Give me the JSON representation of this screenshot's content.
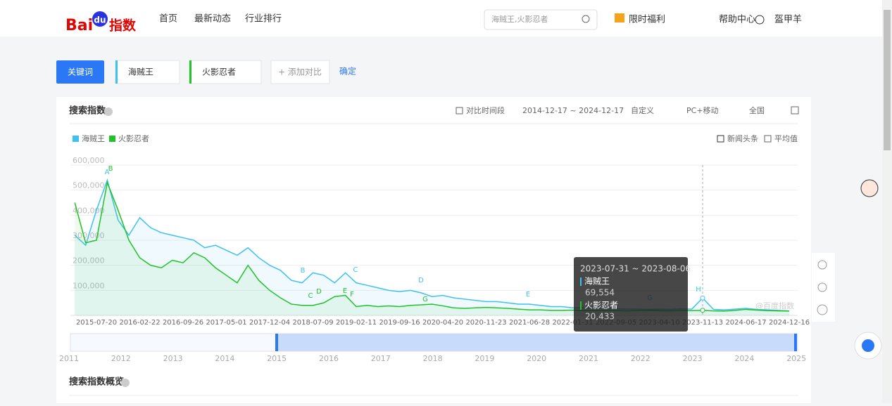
{
  "header": {
    "logo": {
      "part1": "Bai",
      "part2": "du",
      "part3": "指数"
    },
    "nav": [
      "首页",
      "最新动态",
      "行业排行"
    ],
    "search_placeholder": "海贼王,火影忍者",
    "links": [
      "限时福利",
      "帮助中心",
      "盔甲羊"
    ]
  },
  "toolbar": {
    "keyword_button": "关键词",
    "keywords": [
      "海贼王",
      "火影忍者"
    ],
    "add_compare": "+ 添加对比",
    "confirm": "确定"
  },
  "panel": {
    "title": "搜索指数",
    "compare_period": "对比时间段",
    "date_range": "2014-12-17 ~ 2024-12-17",
    "custom": "自定义",
    "device": "PC+移动",
    "region": "全国",
    "news": "新闻头条",
    "average": "平均值",
    "watermark": "@百度指数"
  },
  "chart_data": {
    "type": "line",
    "grid": true,
    "categories": [
      null,
      null,
      "2015-07-20",
      null,
      null,
      null,
      "2016-02-22",
      null,
      null,
      null,
      "2016-09-26",
      null,
      null,
      null,
      "2017-05-01",
      null,
      null,
      null,
      "2017-12-04",
      null,
      null,
      null,
      "2018-07-09",
      null,
      null,
      null,
      "2019-02-11",
      null,
      null,
      null,
      "2019-09-16",
      null,
      null,
      null,
      "2020-04-20",
      null,
      null,
      null,
      "2020-11-23",
      null,
      null,
      null,
      "2021-06-28",
      null,
      null,
      null,
      "2022-01-31",
      null,
      null,
      null,
      "2022-09-05",
      null,
      null,
      null,
      "2023-04-10",
      null,
      null,
      null,
      "2023-11-13",
      null,
      null,
      null,
      "2024-06-17",
      null,
      null,
      null,
      "2024-12-16"
    ],
    "series": [
      {
        "name": "海贼王",
        "color": "#3ec1ee",
        "values": [
          320000,
          280000,
          420000,
          540000,
          380000,
          320000,
          390000,
          350000,
          330000,
          320000,
          310000,
          300000,
          270000,
          280000,
          260000,
          240000,
          270000,
          230000,
          200000,
          180000,
          140000,
          130000,
          170000,
          160000,
          130000,
          170000,
          130000,
          120000,
          110000,
          100000,
          95000,
          100000,
          90000,
          75000,
          80000,
          70000,
          65000,
          60000,
          55000,
          55000,
          50000,
          45000,
          45000,
          40000,
          35000,
          35000,
          30000,
          30000,
          28000,
          27000,
          26000,
          25000,
          25000,
          24000,
          25000,
          24000,
          26000,
          25000,
          69554,
          24000,
          22000,
          25000,
          28000,
          24000,
          22000,
          20000,
          18000
        ]
      },
      {
        "name": "火影忍者",
        "color": "#22c22a",
        "values": [
          450000,
          290000,
          300000,
          530000,
          420000,
          300000,
          230000,
          200000,
          190000,
          220000,
          210000,
          250000,
          230000,
          190000,
          160000,
          130000,
          200000,
          140000,
          100000,
          70000,
          45000,
          40000,
          40000,
          50000,
          75000,
          80000,
          35000,
          40000,
          35000,
          38000,
          35000,
          40000,
          42000,
          45000,
          38000,
          30000,
          28000,
          30000,
          32000,
          30000,
          28000,
          25000,
          22000,
          22000,
          20000,
          20000,
          21000,
          20000,
          19000,
          20000,
          19000,
          18000,
          19000,
          20000,
          19000,
          18000,
          19000,
          19000,
          20433,
          18000,
          17000,
          20000,
          24000,
          21000,
          19000,
          18000,
          17000
        ]
      }
    ],
    "ylim": [
      0,
      600000
    ],
    "yticks": [
      {
        "value": 100000,
        "label": "100,000"
      },
      {
        "value": 200000,
        "label": "200,000"
      },
      {
        "value": 300000,
        "label": "300,000"
      },
      {
        "value": 400000,
        "label": "400,000"
      },
      {
        "value": 500000,
        "label": "500,000"
      },
      {
        "value": 600000,
        "label": "600,000"
      }
    ],
    "annotations": [
      "A",
      "B",
      "B",
      "C",
      "C",
      "D",
      "E",
      "F",
      "D",
      "G",
      "E",
      "G",
      "H"
    ],
    "tooltip": {
      "title": "2023-07-31 ~ 2023-08-06",
      "values": [
        69554,
        20433
      ],
      "value_labels": [
        "69,554",
        "20,433"
      ]
    }
  },
  "navigator": {
    "years": [
      "2011",
      "2012",
      "2013",
      "2014",
      "2015",
      "2016",
      "2017",
      "2018",
      "2019",
      "2020",
      "2021",
      "2022",
      "2023",
      "2024",
      "2025"
    ]
  },
  "overview": {
    "title": "搜索指数概览"
  }
}
